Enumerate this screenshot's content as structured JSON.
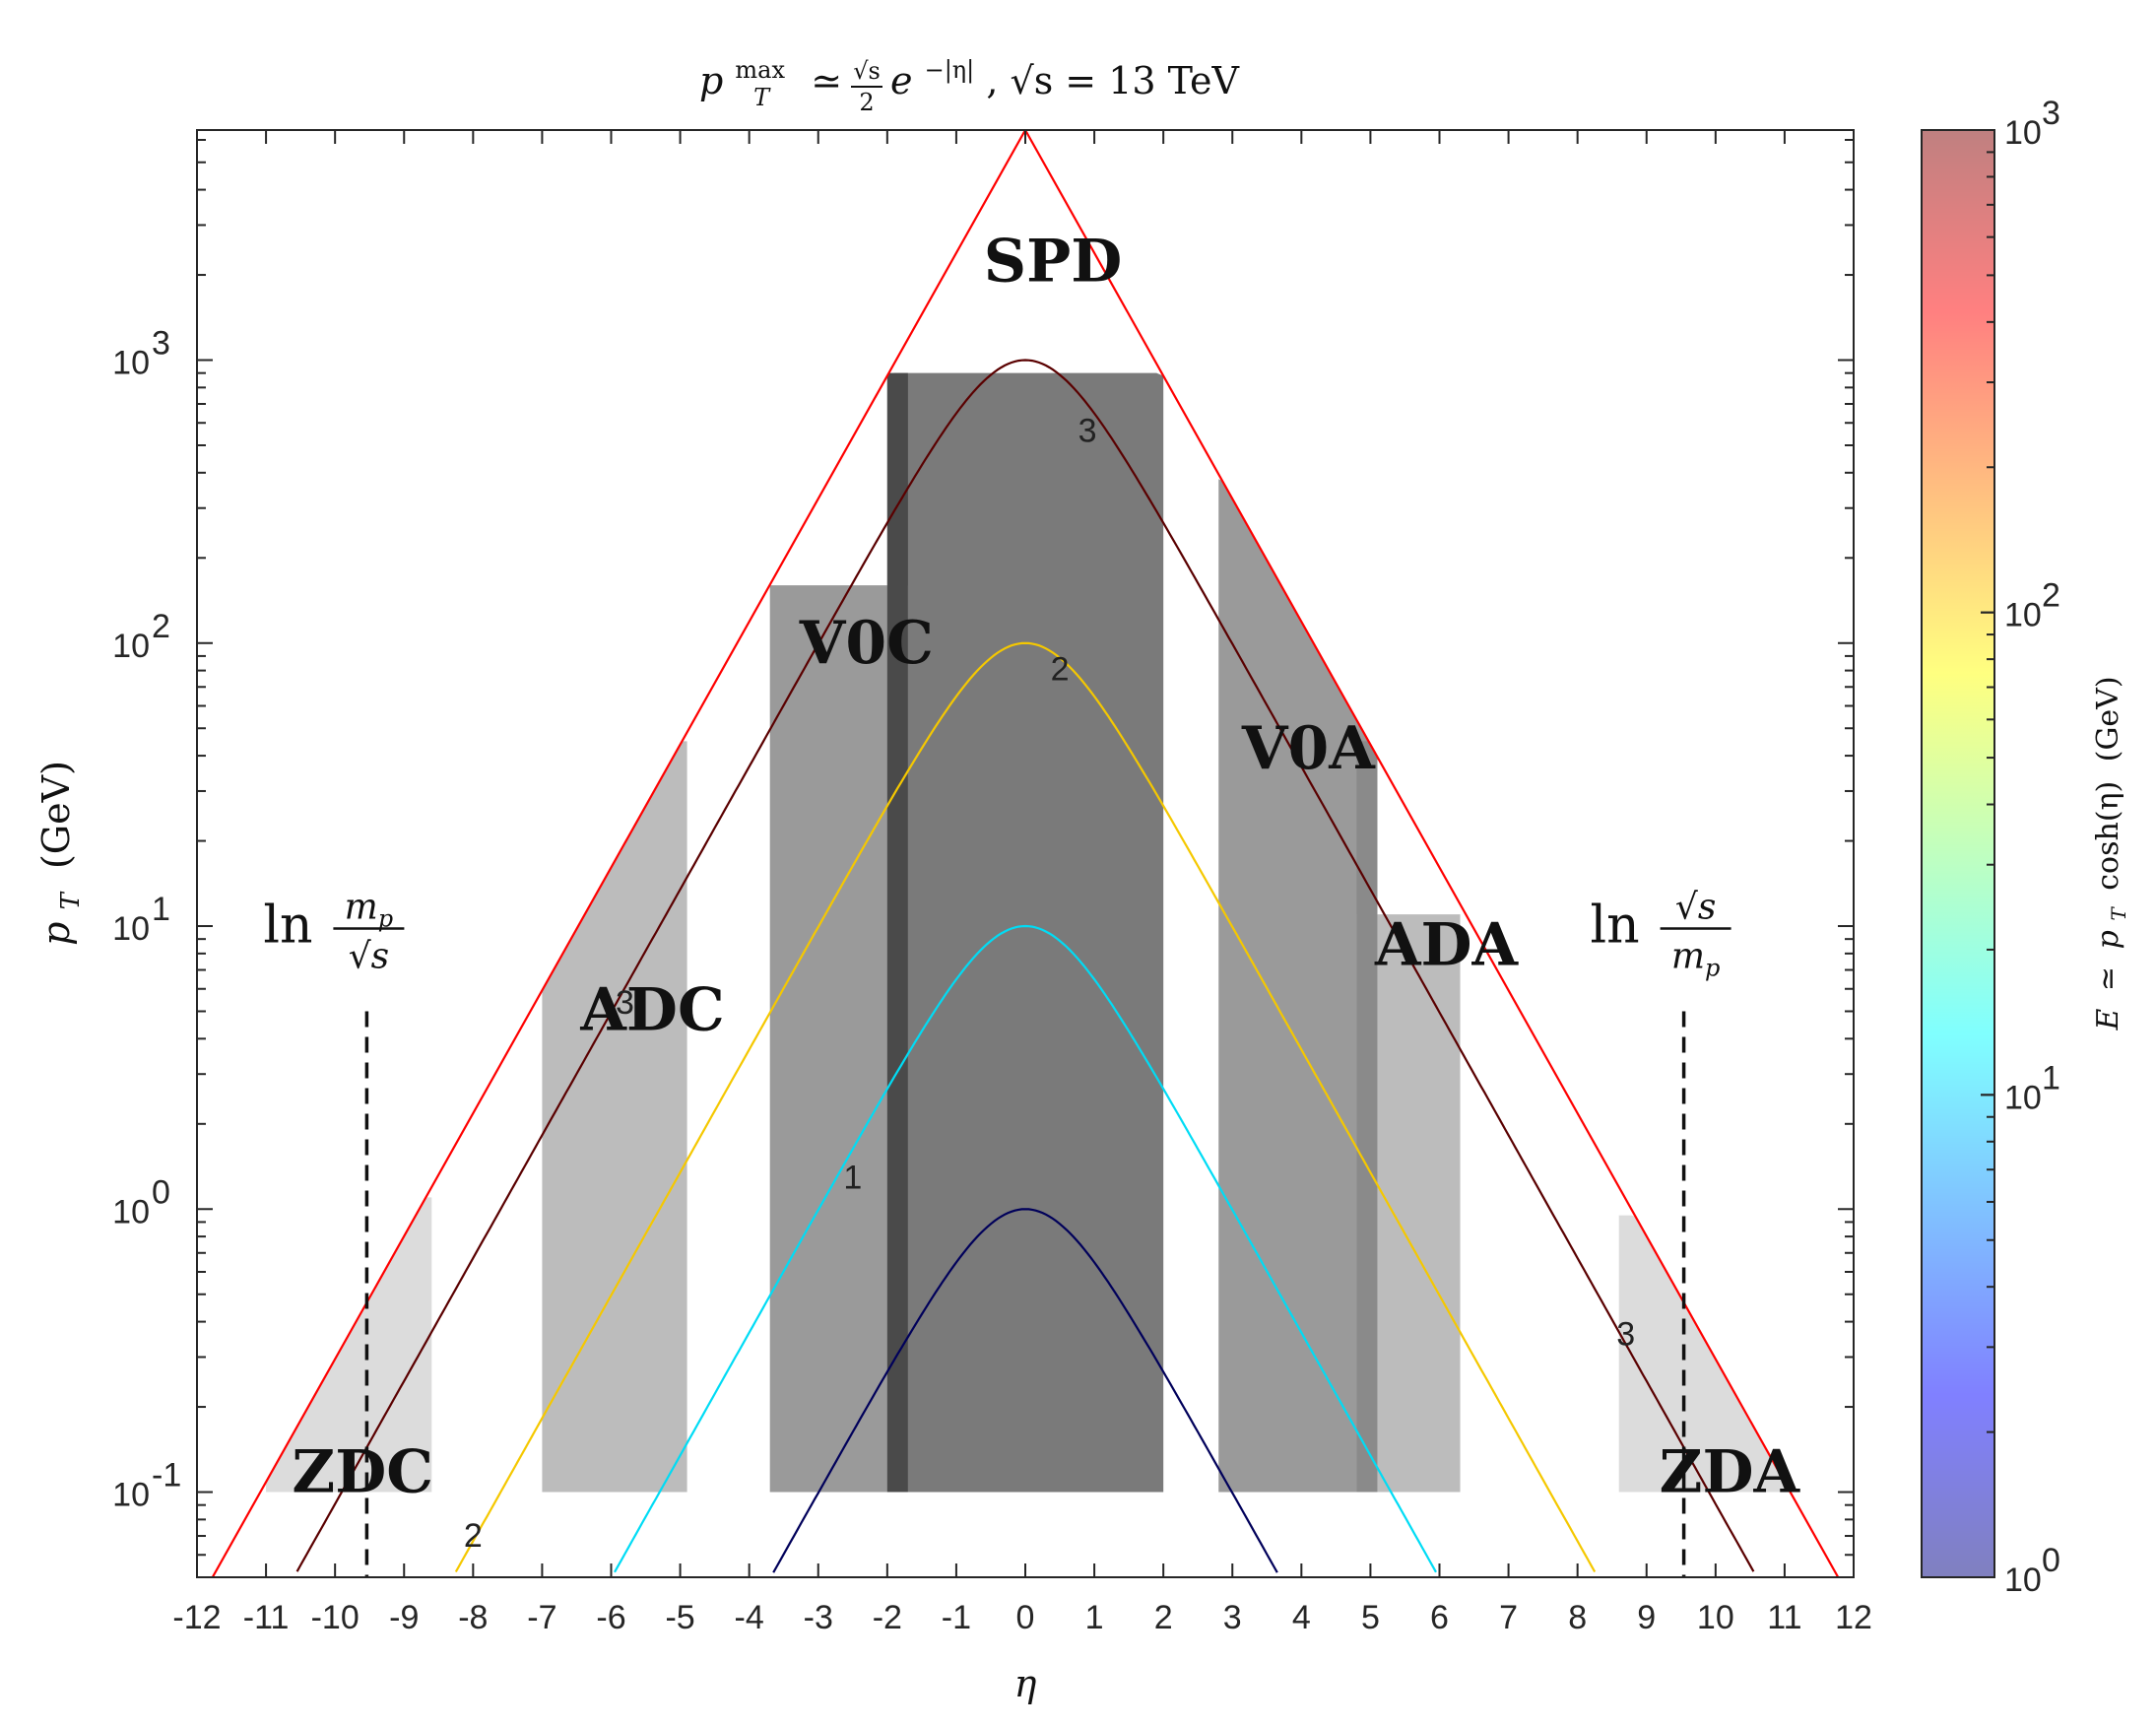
{
  "chart_data": {
    "type": "line",
    "title": "p_T^max ≃ (√s/2) e^(−|η|), √s = 13 TeV",
    "title_parts": {
      "lhs": "p",
      "lhs_sub": "T",
      "lhs_sup": "max",
      "approx": "≃",
      "frac_num": "√s",
      "frac_den": "2",
      "exp_base": "e",
      "exp_pow": "−|η|",
      "rest": ", √s = 13 TeV"
    },
    "xlabel": "η",
    "ylabel": "p_T (GeV)",
    "ylabel_parts": {
      "main": "p",
      "sub": "T",
      "unit": "(GeV)"
    },
    "xlim": [
      -12,
      12
    ],
    "ylim": [
      0.05,
      6500
    ],
    "yscale": "log",
    "x_ticks": [
      -12,
      -11,
      -10,
      -9,
      -8,
      -7,
      -6,
      -5,
      -4,
      -3,
      -2,
      -1,
      0,
      1,
      2,
      3,
      4,
      5,
      6,
      7,
      8,
      9,
      10,
      11,
      12
    ],
    "x_tick_labels": [
      "-12",
      "-11",
      "-10",
      "-9",
      "-8",
      "-7",
      "-6",
      "-5",
      "-4",
      "-3",
      "-2",
      "-1",
      "0",
      "1",
      "2",
      "3",
      "4",
      "5",
      "6",
      "7",
      "8",
      "9",
      "10",
      "11",
      "12"
    ],
    "y_ticks": [
      0.1,
      1,
      10,
      100,
      1000
    ],
    "y_tick_labels": [
      {
        "base": "10",
        "exp": "-1"
      },
      {
        "base": "10",
        "exp": "0"
      },
      {
        "base": "10",
        "exp": "1"
      },
      {
        "base": "10",
        "exp": "2"
      },
      {
        "base": "10",
        "exp": "3"
      }
    ],
    "envelope": {
      "sqrt_s": 13000,
      "color": "#ff0000"
    },
    "detectors": [
      {
        "name": "SPD",
        "eta": [
          -2,
          2
        ],
        "pt_max": 900,
        "shade": "#7a7a7a",
        "label": "SPD",
        "label_eta": 0.4,
        "label_pt": 1900
      },
      {
        "name": "V0C",
        "eta": [
          -3.7,
          -1.7
        ],
        "pt_max": 160,
        "shade": "#9a9a9a",
        "label": "V0C",
        "label_eta": -2.3,
        "label_pt": 85
      },
      {
        "name": "V0A",
        "eta": [
          2.8,
          5.1
        ],
        "pt_max": 380,
        "shade": "#9a9a9a",
        "label": "V0A",
        "label_eta": 4.1,
        "label_pt": 36
      },
      {
        "name": "ADC",
        "eta": [
          -7.0,
          -4.9
        ],
        "pt_max": 45,
        "shade": "#bcbcbc",
        "label": "ADC",
        "label_eta": -5.4,
        "label_pt": 4.3
      },
      {
        "name": "ADA",
        "eta": [
          4.8,
          6.3
        ],
        "pt_max": 11,
        "shade": "#bcbcbc",
        "label": "ADA",
        "label_eta": 6.1,
        "label_pt": 7.3
      },
      {
        "name": "ZDC",
        "eta": [
          -11,
          -8.6
        ],
        "pt_max": 1.1,
        "shade": "#dcdcdc",
        "label": "ZDC",
        "label_eta": -9.6,
        "label_pt": 0.1
      },
      {
        "name": "ZDA",
        "eta": [
          8.6,
          11
        ],
        "pt_max": 0.95,
        "shade": "#dcdcdc",
        "label": "ZDA",
        "label_eta": 10.2,
        "label_pt": 0.1
      }
    ],
    "overlap_bands": [
      {
        "eta": [
          -2.0,
          -1.7
        ],
        "pt_max": 900,
        "shade": "#4a4a4a"
      },
      {
        "eta": [
          4.8,
          5.1
        ],
        "pt_max": 45,
        "shade": "#8a8a8a"
      }
    ],
    "beam_rapidity_lines": [
      {
        "eta": -9.54,
        "pt_top": 5,
        "label": "ln m_p/√s",
        "label_parts": {
          "ln": "ln",
          "num": "m",
          "num_sub": "p",
          "den": "√s"
        }
      },
      {
        "eta": 9.54,
        "pt_top": 5,
        "label": "ln √s/m_p",
        "label_parts": {
          "ln": "ln",
          "num": "√s",
          "den": "m",
          "den_sub": "p"
        }
      }
    ],
    "series": [
      {
        "name": "E = 10^0 GeV",
        "log10E": 0,
        "color": "#00005a",
        "pt_max": 1
      },
      {
        "name": "E = 10^1 GeV",
        "log10E": 1,
        "color": "#00dcf5",
        "pt_max": 10
      },
      {
        "name": "E = 10^2 GeV",
        "log10E": 2,
        "color": "#f5c800",
        "pt_max": 100
      },
      {
        "name": "E = 10^3 GeV",
        "log10E": 3,
        "color": "#5a0000",
        "pt_max": 1000
      }
    ],
    "contour_labels": [
      {
        "text": "1",
        "eta": -2.5,
        "pt": 1.18
      },
      {
        "text": "2",
        "eta": 0.5,
        "pt": 74
      },
      {
        "text": "3",
        "eta": 0.9,
        "pt": 515
      },
      {
        "text": "3",
        "eta": -5.8,
        "pt": 4.9
      },
      {
        "text": "3",
        "eta": 8.7,
        "pt": 0.33
      },
      {
        "text": "2",
        "eta": -8.0,
        "pt": 0.064
      }
    ],
    "colorbar": {
      "label": "E ≃ p_T cosh(η) (GeV)",
      "label_parts": {
        "lhs": "E",
        "approx": "≃",
        "p": "p",
        "sub": "T",
        "fn": "cosh(η)",
        "unit": "(GeV)"
      },
      "scale": "log",
      "range": [
        1,
        1000
      ],
      "ticks": [
        {
          "base": "10",
          "exp": "0",
          "value": 1
        },
        {
          "base": "10",
          "exp": "1",
          "value": 10
        },
        {
          "base": "10",
          "exp": "2",
          "value": 100
        },
        {
          "base": "10",
          "exp": "3",
          "value": 1000
        }
      ],
      "colormap": [
        "#00007f",
        "#0000ff",
        "#0080ff",
        "#00ffff",
        "#80ff80",
        "#ffff00",
        "#ff8000",
        "#ff0000",
        "#800000"
      ],
      "alpha": 0.5
    },
    "grid": false
  }
}
